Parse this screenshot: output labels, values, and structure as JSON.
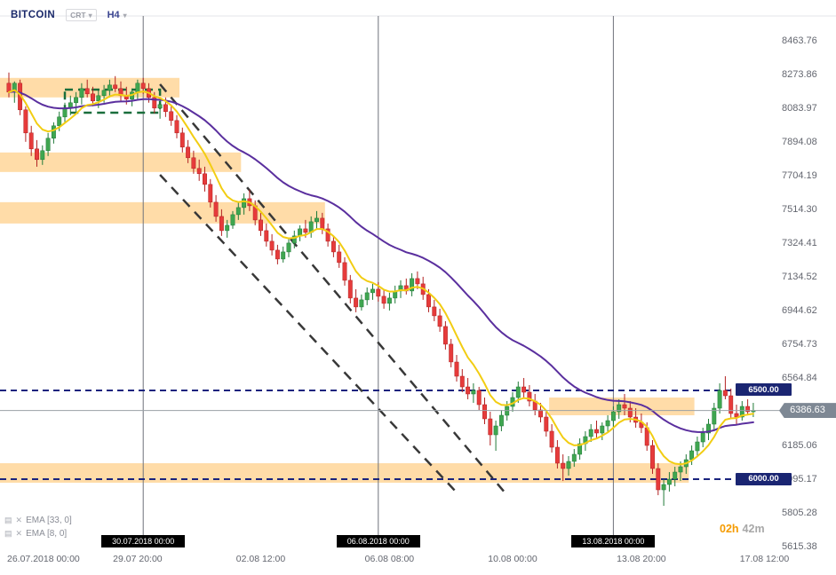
{
  "header": {
    "symbol": "BITCOIN",
    "chart_type_label": "CRT",
    "timeframe_label": "H4"
  },
  "icons": {
    "dropdown": "▾",
    "settings": "▤",
    "close": "✕"
  },
  "indicator_legend": [
    {
      "label": "EMA [33, 0]"
    },
    {
      "label": "EMA [8, 0]"
    }
  ],
  "countdown": {
    "hours": "02h",
    "minutes": "42m"
  },
  "colors": {
    "up": "#3fa650",
    "up_stroke": "#207a38",
    "down": "#e63b3b",
    "down_stroke": "#b22222",
    "zone": "#ffdca8",
    "level": "#1a237e",
    "channel": "#383838",
    "range_box": "#1a6e3c",
    "grid": "#6f727b",
    "ema33": "#5a2f9e",
    "ema8": "#f2cd13"
  },
  "chart_data": {
    "type": "candlestick",
    "title": "BITCOIN",
    "timeframe": "H4",
    "ylim": [
      5615.38,
      8463.76
    ],
    "price_axis_ticks": [
      {
        "text": "8463.76",
        "price": 8463.76
      },
      {
        "text": "8273.86",
        "price": 8273.86
      },
      {
        "text": "8083.97",
        "price": 8083.97
      },
      {
        "text": "7894.08",
        "price": 7894.08
      },
      {
        "text": "7704.19",
        "price": 7704.19
      },
      {
        "text": "7514.30",
        "price": 7514.3
      },
      {
        "text": "7324.41",
        "price": 7324.41
      },
      {
        "text": "7134.52",
        "price": 7134.52
      },
      {
        "text": "6944.62",
        "price": 6944.62
      },
      {
        "text": "6754.73",
        "price": 6754.73
      },
      {
        "text": "6564.84",
        "price": 6564.84
      },
      {
        "text": "6185.06",
        "price": 6185.06
      },
      {
        "text": "5995.17",
        "price": 5995.17
      },
      {
        "text": "5805.28",
        "price": 5805.28
      },
      {
        "text": "5615.38",
        "price": 5615.38
      }
    ],
    "time_axis_ticks": [
      {
        "text": "26.07.2018  00:00",
        "index": 0
      },
      {
        "text": "29.07  20:00",
        "index": 23
      },
      {
        "text": "02.08  12:00",
        "index": 45
      },
      {
        "text": "06.08  08:00",
        "index": 68
      },
      {
        "text": "10.08  00:00",
        "index": 90
      },
      {
        "text": "13.08  20:00",
        "index": 113
      },
      {
        "text": "17.08  12:00",
        "index": 135
      }
    ],
    "session_markers": [
      {
        "text": "30.07.2018 00:00",
        "index": 24
      },
      {
        "text": "06.08.2018 00:00",
        "index": 66
      },
      {
        "text": "13.08.2018 00:00",
        "index": 108
      }
    ],
    "current_price": {
      "text": "6386.63",
      "value": 6386.63
    },
    "levels": [
      {
        "text": "6500.00",
        "price": 6500.0
      },
      {
        "text": "6000.00",
        "price": 6000.0
      }
    ],
    "zones": [
      {
        "price_from": 8150,
        "price_to": 8260,
        "index_from": 0,
        "index_to": 30
      },
      {
        "price_from": 7730,
        "price_to": 7840,
        "index_from": 0,
        "index_to": 41
      },
      {
        "price_from": 7440,
        "price_to": 7560,
        "index_from": 0,
        "index_to": 56
      },
      {
        "price_from": 6360,
        "price_to": 6460,
        "index_from": 97,
        "index_to": 122
      },
      {
        "price_from": 5980,
        "price_to": 6090,
        "index_from": 0,
        "index_to": 121
      }
    ],
    "range_box": {
      "price_from": 8064,
      "price_to": 8194,
      "index_from": 10,
      "index_to": 27
    },
    "channel": {
      "upper": {
        "from": {
          "index": 27,
          "price": 8224
        },
        "to": {
          "index": 89,
          "price": 5910
        }
      },
      "lower": {
        "from": {
          "index": 27,
          "price": 7714
        },
        "to": {
          "index": 80,
          "price": 5925
        }
      }
    },
    "emas": [
      {
        "period": 33
      },
      {
        "period": 8
      }
    ],
    "candles": [
      [
        8230,
        8290,
        8150,
        8180
      ],
      [
        8180,
        8240,
        8120,
        8230
      ],
      [
        8230,
        8250,
        8050,
        8080
      ],
      [
        8080,
        8100,
        7900,
        7950
      ],
      [
        7950,
        7990,
        7820,
        7860
      ],
      [
        7860,
        7910,
        7760,
        7800
      ],
      [
        7800,
        7880,
        7770,
        7850
      ],
      [
        7850,
        7950,
        7820,
        7920
      ],
      [
        7920,
        8010,
        7890,
        7990
      ],
      [
        7990,
        8070,
        7960,
        8040
      ],
      [
        8040,
        8120,
        8010,
        8090
      ],
      [
        8090,
        8160,
        8050,
        8120
      ],
      [
        8120,
        8180,
        8070,
        8150
      ],
      [
        8150,
        8230,
        8110,
        8200
      ],
      [
        8200,
        8250,
        8150,
        8170
      ],
      [
        8170,
        8210,
        8100,
        8130
      ],
      [
        8130,
        8190,
        8090,
        8160
      ],
      [
        8160,
        8220,
        8120,
        8190
      ],
      [
        8190,
        8250,
        8150,
        8220
      ],
      [
        8220,
        8270,
        8180,
        8200
      ],
      [
        8200,
        8240,
        8130,
        8160
      ],
      [
        8160,
        8210,
        8110,
        8140
      ],
      [
        8140,
        8200,
        8100,
        8180
      ],
      [
        8180,
        8250,
        8140,
        8230
      ],
      [
        8230,
        8260,
        8170,
        8200
      ],
      [
        8200,
        8230,
        8120,
        8150
      ],
      [
        8150,
        8180,
        8060,
        8090
      ],
      [
        8090,
        8140,
        8030,
        8110
      ],
      [
        8110,
        8150,
        8040,
        8070
      ],
      [
        8070,
        8100,
        7990,
        8020
      ],
      [
        8020,
        8050,
        7920,
        7950
      ],
      [
        7950,
        7980,
        7840,
        7870
      ],
      [
        7870,
        7910,
        7780,
        7810
      ],
      [
        7810,
        7850,
        7720,
        7750
      ],
      [
        7750,
        7800,
        7680,
        7720
      ],
      [
        7720,
        7760,
        7620,
        7660
      ],
      [
        7660,
        7690,
        7530,
        7560
      ],
      [
        7560,
        7600,
        7450,
        7480
      ],
      [
        7480,
        7520,
        7370,
        7400
      ],
      [
        7400,
        7460,
        7360,
        7430
      ],
      [
        7430,
        7510,
        7410,
        7490
      ],
      [
        7490,
        7560,
        7460,
        7530
      ],
      [
        7530,
        7610,
        7490,
        7580
      ],
      [
        7580,
        7630,
        7510,
        7540
      ],
      [
        7540,
        7570,
        7430,
        7460
      ],
      [
        7460,
        7500,
        7370,
        7400
      ],
      [
        7400,
        7440,
        7310,
        7340
      ],
      [
        7340,
        7380,
        7260,
        7290
      ],
      [
        7290,
        7320,
        7210,
        7240
      ],
      [
        7240,
        7310,
        7220,
        7280
      ],
      [
        7280,
        7360,
        7250,
        7330
      ],
      [
        7330,
        7400,
        7300,
        7370
      ],
      [
        7370,
        7430,
        7340,
        7410
      ],
      [
        7410,
        7460,
        7360,
        7390
      ],
      [
        7390,
        7480,
        7360,
        7450
      ],
      [
        7450,
        7510,
        7410,
        7470
      ],
      [
        7470,
        7500,
        7380,
        7410
      ],
      [
        7410,
        7440,
        7310,
        7340
      ],
      [
        7340,
        7370,
        7250,
        7280
      ],
      [
        7280,
        7320,
        7190,
        7220
      ],
      [
        7220,
        7250,
        7090,
        7120
      ],
      [
        7120,
        7150,
        6990,
        7020
      ],
      [
        7020,
        7070,
        6940,
        6970
      ],
      [
        6970,
        7040,
        6950,
        7010
      ],
      [
        7010,
        7080,
        6980,
        7050
      ],
      [
        7050,
        7100,
        7010,
        7070
      ],
      [
        7070,
        7110,
        7000,
        7030
      ],
      [
        7030,
        7070,
        6960,
        6990
      ],
      [
        6990,
        7050,
        6950,
        7020
      ],
      [
        7020,
        7090,
        6990,
        7060
      ],
      [
        7060,
        7120,
        7020,
        7090
      ],
      [
        7090,
        7130,
        7040,
        7060
      ],
      [
        7060,
        7160,
        7030,
        7130
      ],
      [
        7130,
        7170,
        7070,
        7100
      ],
      [
        7100,
        7140,
        7010,
        7040
      ],
      [
        7040,
        7070,
        6940,
        6970
      ],
      [
        6970,
        7010,
        6890,
        6920
      ],
      [
        6920,
        6960,
        6830,
        6860
      ],
      [
        6860,
        6890,
        6730,
        6760
      ],
      [
        6760,
        6790,
        6630,
        6660
      ],
      [
        6660,
        6700,
        6550,
        6580
      ],
      [
        6580,
        6620,
        6490,
        6520
      ],
      [
        6520,
        6570,
        6450,
        6480
      ],
      [
        6480,
        6540,
        6430,
        6500
      ],
      [
        6500,
        6520,
        6390,
        6420
      ],
      [
        6420,
        6460,
        6310,
        6340
      ],
      [
        6340,
        6380,
        6190,
        6250
      ],
      [
        6250,
        6330,
        6160,
        6300
      ],
      [
        6300,
        6390,
        6270,
        6360
      ],
      [
        6360,
        6440,
        6330,
        6410
      ],
      [
        6410,
        6490,
        6380,
        6460
      ],
      [
        6460,
        6550,
        6430,
        6520
      ],
      [
        6520,
        6570,
        6460,
        6490
      ],
      [
        6490,
        6530,
        6410,
        6440
      ],
      [
        6440,
        6480,
        6360,
        6390
      ],
      [
        6390,
        6430,
        6320,
        6350
      ],
      [
        6350,
        6380,
        6240,
        6270
      ],
      [
        6270,
        6310,
        6150,
        6180
      ],
      [
        6180,
        6220,
        6060,
        6090
      ],
      [
        6090,
        6140,
        5990,
        6060
      ],
      [
        6060,
        6130,
        6020,
        6100
      ],
      [
        6100,
        6170,
        6070,
        6140
      ],
      [
        6140,
        6230,
        6110,
        6200
      ],
      [
        6200,
        6270,
        6160,
        6240
      ],
      [
        6240,
        6310,
        6210,
        6280
      ],
      [
        6280,
        6330,
        6230,
        6260
      ],
      [
        6260,
        6320,
        6220,
        6300
      ],
      [
        6300,
        6360,
        6260,
        6330
      ],
      [
        6330,
        6410,
        6290,
        6380
      ],
      [
        6380,
        6450,
        6340,
        6420
      ],
      [
        6420,
        6480,
        6360,
        6400
      ],
      [
        6400,
        6440,
        6320,
        6350
      ],
      [
        6350,
        6400,
        6290,
        6320
      ],
      [
        6320,
        6370,
        6260,
        6290
      ],
      [
        6290,
        6320,
        6160,
        6190
      ],
      [
        6190,
        6220,
        6030,
        6060
      ],
      [
        6060,
        6090,
        5910,
        5940
      ],
      [
        5940,
        6000,
        5850,
        5970
      ],
      [
        5970,
        6040,
        5930,
        6000
      ],
      [
        6000,
        6070,
        5960,
        6040
      ],
      [
        6040,
        6100,
        5990,
        6070
      ],
      [
        6070,
        6140,
        6030,
        6110
      ],
      [
        6110,
        6190,
        6080,
        6160
      ],
      [
        6160,
        6240,
        6130,
        6210
      ],
      [
        6210,
        6290,
        6180,
        6260
      ],
      [
        6260,
        6340,
        6220,
        6310
      ],
      [
        6310,
        6430,
        6280,
        6400
      ],
      [
        6400,
        6540,
        6370,
        6500
      ],
      [
        6500,
        6580,
        6450,
        6470
      ],
      [
        6470,
        6510,
        6340,
        6370
      ],
      [
        6370,
        6420,
        6310,
        6350
      ],
      [
        6350,
        6440,
        6330,
        6410
      ],
      [
        6410,
        6450,
        6360,
        6380
      ],
      [
        6380,
        6430,
        6350,
        6386.63
      ]
    ]
  }
}
